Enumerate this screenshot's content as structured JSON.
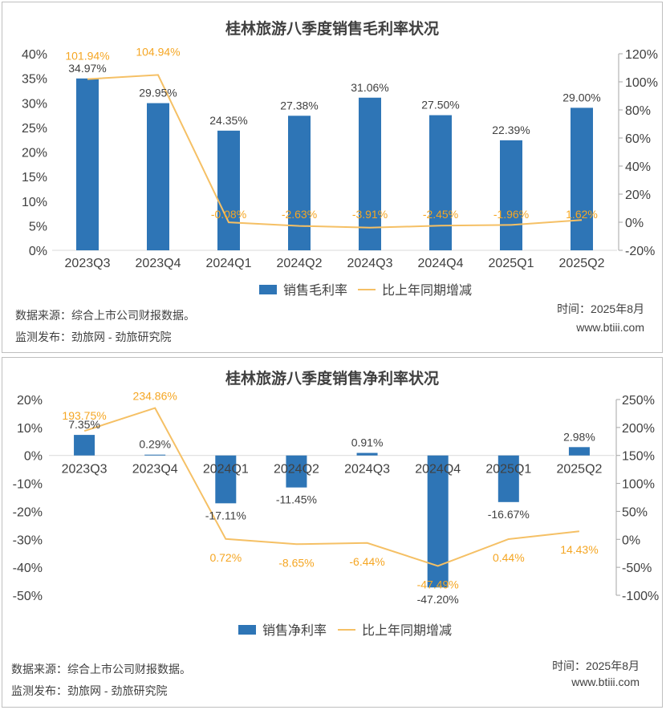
{
  "colors": {
    "bar": "#2e75b6",
    "line": "#f5c065",
    "label_line": "#f5a623",
    "text": "#404040",
    "grid": "#d9d9d9"
  },
  "footer": {
    "source": "数据来源：综合上市公司财报数据。",
    "publisher": "监测发布：劲旅网 - 劲旅研究院",
    "time": "时间：2025年8月",
    "site": "www.btiii.com"
  },
  "chart_data": [
    {
      "type": "bar",
      "title": "桂林旅游八季度销售毛利率状况",
      "categories": [
        "2023Q3",
        "2023Q4",
        "2024Q1",
        "2024Q2",
        "2024Q3",
        "2024Q4",
        "2025Q1",
        "2025Q2"
      ],
      "series": [
        {
          "name": "销售毛利率",
          "type": "bar",
          "axis": "left",
          "values": [
            34.97,
            29.95,
            24.35,
            27.38,
            31.06,
            27.5,
            22.39,
            29.0
          ],
          "labels": [
            "34.97%",
            "29.95%",
            "24.35%",
            "27.38%",
            "31.06%",
            "27.50%",
            "22.39%",
            "29.00%"
          ]
        },
        {
          "name": "比上年同期增减",
          "type": "line",
          "axis": "right",
          "values": [
            101.94,
            104.94,
            -0.08,
            -2.63,
            -3.91,
            -2.45,
            -1.96,
            1.62
          ],
          "labels": [
            "101.94%",
            "104.94%",
            "-0.08%",
            "-2.63%",
            "-3.91%",
            "-2.45%",
            "-1.96%",
            "1.62%"
          ]
        }
      ],
      "left_axis": {
        "min": 0,
        "max": 40,
        "step": 5,
        "ticks": [
          "0%",
          "5%",
          "10%",
          "15%",
          "20%",
          "25%",
          "30%",
          "35%",
          "40%"
        ]
      },
      "right_axis": {
        "min": -20,
        "max": 120,
        "step": 20,
        "ticks": [
          "-20%",
          "0%",
          "20%",
          "40%",
          "60%",
          "80%",
          "100%",
          "120%"
        ]
      },
      "legend": [
        "销售毛利率",
        "比上年同期增减"
      ]
    },
    {
      "type": "bar",
      "title": "桂林旅游八季度销售净利率状况",
      "categories": [
        "2023Q3",
        "2023Q4",
        "2024Q1",
        "2024Q2",
        "2024Q3",
        "2024Q4",
        "2025Q1",
        "2025Q2"
      ],
      "series": [
        {
          "name": "销售净利率",
          "type": "bar",
          "axis": "left",
          "values": [
            7.35,
            0.29,
            -17.11,
            -11.45,
            0.91,
            -47.2,
            -16.67,
            2.98
          ],
          "labels": [
            "7.35%",
            "0.29%",
            "-17.11%",
            "-11.45%",
            "0.91%",
            "-47.20%",
            "-16.67%",
            "2.98%"
          ]
        },
        {
          "name": "比上年同期增减",
          "type": "line",
          "axis": "right",
          "values": [
            193.75,
            234.86,
            0.72,
            -8.65,
            -6.44,
            -47.49,
            0.44,
            14.43
          ],
          "labels": [
            "193.75%",
            "234.86%",
            "0.72%",
            "-8.65%",
            "-6.44%",
            "-47.49%",
            "0.44%",
            "14.43%"
          ]
        }
      ],
      "left_axis": {
        "min": -50,
        "max": 20,
        "step": 10,
        "ticks": [
          "-50%",
          "-40%",
          "-30%",
          "-20%",
          "-10%",
          "0%",
          "10%",
          "20%"
        ]
      },
      "right_axis": {
        "min": -100,
        "max": 250,
        "step": 50,
        "ticks": [
          "-100%",
          "-50%",
          "0%",
          "50%",
          "100%",
          "150%",
          "200%",
          "250%"
        ]
      },
      "legend": [
        "销售净利率",
        "比上年同期增减"
      ]
    }
  ]
}
